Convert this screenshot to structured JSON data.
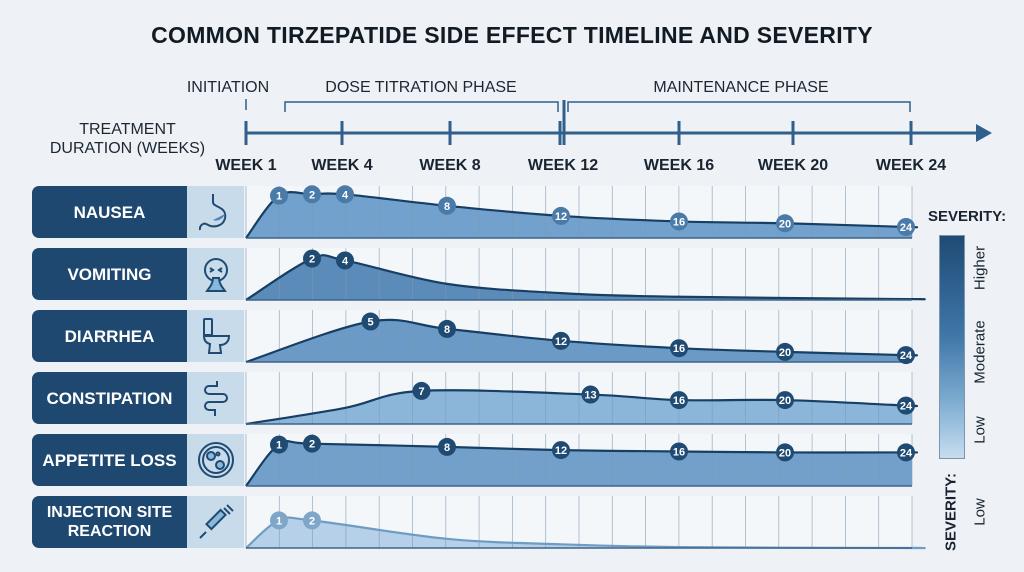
{
  "chart_data": {
    "type": "area",
    "title": "COMMON TIRZEPATIDE SIDE EFFECT TIMELINE AND SEVERITY",
    "xlabel": "TREATMENT DURATION (WEEKS)",
    "x_ticks": [
      "WEEK 1",
      "WEEK 4",
      "WEEK 8",
      "WEEK 12",
      "WEEK 16",
      "WEEK 20",
      "WEEK 24"
    ],
    "phases": [
      "INITIATION",
      "DOSE TITRATION PHASE",
      "MAINTENANCE PHASE"
    ],
    "severity_scale": "relative 0 (none) to 1 (higher)",
    "legend": {
      "title": "SEVERITY:",
      "levels": [
        "Higher",
        "Moderate",
        "Low"
      ],
      "bottom_title": "SEVERITY:",
      "bottom_level": "Low",
      "placement": "right"
    },
    "series": [
      {
        "name": "NAUSEA",
        "icon": "stomach-icon",
        "color": "#5b92c4",
        "marker_color": "#4a7aa8",
        "points": [
          [
            0,
            0
          ],
          [
            1,
            0.92
          ],
          [
            2,
            0.95
          ],
          [
            4,
            0.95
          ],
          [
            8,
            0.7
          ],
          [
            12,
            0.48
          ],
          [
            16,
            0.36
          ],
          [
            20,
            0.32
          ],
          [
            24,
            0.24
          ]
        ],
        "markers": [
          "1",
          "2",
          "4",
          "8",
          "12",
          "16",
          "20",
          "24"
        ]
      },
      {
        "name": "VOMITING",
        "icon": "vomiting-face-icon",
        "color": "#3f78ad",
        "marker_color": "#1f4a72",
        "points": [
          [
            0,
            0
          ],
          [
            2,
            0.9
          ],
          [
            4,
            0.86
          ],
          [
            8,
            0.35
          ],
          [
            12,
            0.15
          ],
          [
            16,
            0.07
          ],
          [
            24,
            0.02
          ]
        ],
        "markers": [
          "2",
          "4"
        ]
      },
      {
        "name": "DIARRHEA",
        "icon": "toilet-icon",
        "color": "#5289bd",
        "marker_color": "#1f4a72",
        "points": [
          [
            0,
            0
          ],
          [
            5,
            0.88
          ],
          [
            8,
            0.72
          ],
          [
            12,
            0.46
          ],
          [
            16,
            0.3
          ],
          [
            20,
            0.22
          ],
          [
            24,
            0.15
          ]
        ],
        "markers": [
          "5",
          "8",
          "12",
          "16",
          "20",
          "24"
        ]
      },
      {
        "name": "CONSTIPATION",
        "icon": "intestine-icon",
        "color": "#78aad4",
        "marker_color": "#1f4a72",
        "points": [
          [
            0,
            0
          ],
          [
            4,
            0.35
          ],
          [
            7,
            0.72
          ],
          [
            13,
            0.64
          ],
          [
            16,
            0.52
          ],
          [
            20,
            0.52
          ],
          [
            24,
            0.4
          ]
        ],
        "markers": [
          "7",
          "13",
          "16",
          "20",
          "24"
        ]
      },
      {
        "name": "APPETITE LOSS",
        "icon": "petri-dish-icon",
        "color": "#5a90c2",
        "marker_color": "#1f4a72",
        "points": [
          [
            0,
            0
          ],
          [
            1,
            0.9
          ],
          [
            2,
            0.92
          ],
          [
            8,
            0.85
          ],
          [
            12,
            0.78
          ],
          [
            16,
            0.75
          ],
          [
            20,
            0.73
          ],
          [
            24,
            0.73
          ]
        ],
        "markers": [
          "1",
          "2",
          "8",
          "12",
          "16",
          "20",
          "24"
        ]
      },
      {
        "name": "INJECTION SITE REACTION",
        "icon": "syringe-icon",
        "color": "#a9c9e4",
        "marker_color": "#7fa6c9",
        "points": [
          [
            0,
            0
          ],
          [
            1,
            0.6
          ],
          [
            2,
            0.6
          ],
          [
            8,
            0.2
          ],
          [
            12,
            0.08
          ],
          [
            16,
            0.02
          ],
          [
            24,
            0
          ]
        ],
        "markers": [
          "1",
          "2"
        ]
      }
    ]
  }
}
